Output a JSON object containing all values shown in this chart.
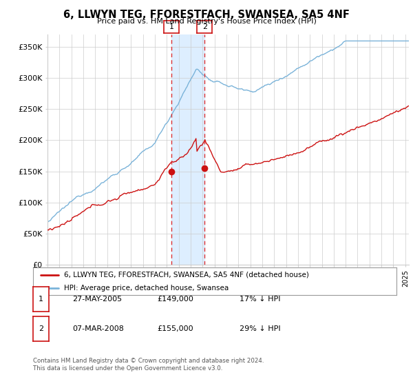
{
  "title": "6, LLWYN TEG, FFORESTFACH, SWANSEA, SA5 4NF",
  "subtitle": "Price paid vs. HM Land Registry's House Price Index (HPI)",
  "ylabel_ticks": [
    "£0",
    "£50K",
    "£100K",
    "£150K",
    "£200K",
    "£250K",
    "£300K",
    "£350K"
  ],
  "ytick_values": [
    0,
    50000,
    100000,
    150000,
    200000,
    250000,
    300000,
    350000
  ],
  "ylim": [
    0,
    370000
  ],
  "xlim_start": 1995.0,
  "xlim_end": 2025.3,
  "sale1_x": 2005.38,
  "sale1_y": 149000,
  "sale2_x": 2008.17,
  "sale2_y": 155000,
  "hpi_color": "#7ab3d9",
  "price_color": "#cc1111",
  "vline_color": "#dd3333",
  "shade_color": "#ddeeff",
  "legend_label_price": "6, LLWYN TEG, FFORESTFACH, SWANSEA, SA5 4NF (detached house)",
  "legend_label_hpi": "HPI: Average price, detached house, Swansea",
  "table_row1": [
    "1",
    "27-MAY-2005",
    "£149,000",
    "17% ↓ HPI"
  ],
  "table_row2": [
    "2",
    "07-MAR-2008",
    "£155,000",
    "29% ↓ HPI"
  ],
  "footer": "Contains HM Land Registry data © Crown copyright and database right 2024.\nThis data is licensed under the Open Government Licence v3.0.",
  "background_color": "#ffffff",
  "grid_color": "#cccccc"
}
